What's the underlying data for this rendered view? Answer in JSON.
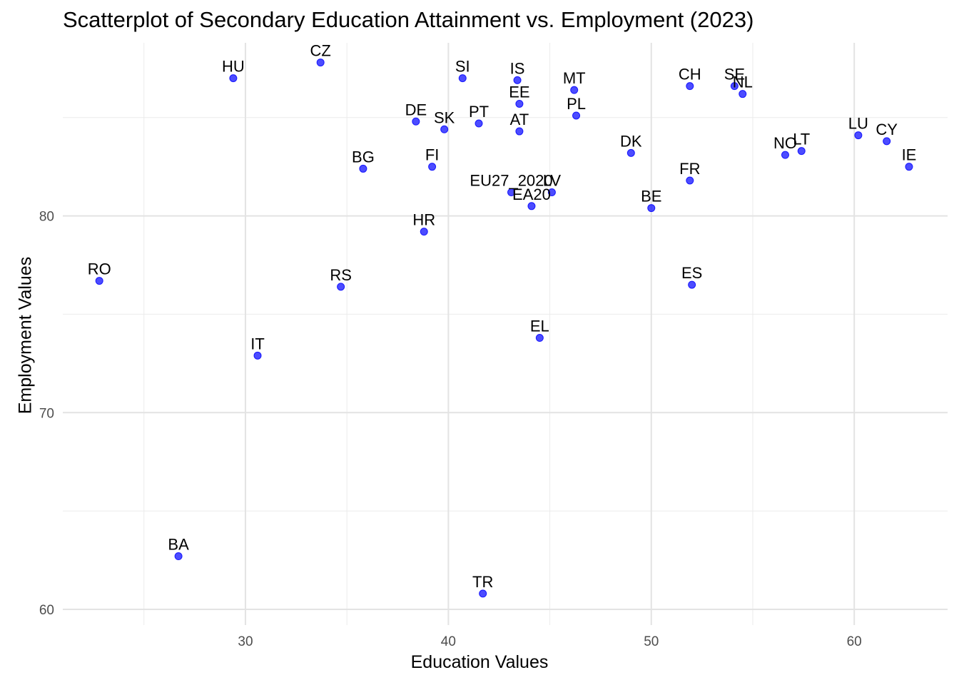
{
  "chart_data": {
    "type": "scatter",
    "title": "Scatterplot of Secondary Education Attainment vs. Employment (2023)",
    "xlabel": "Education Values",
    "ylabel": "Employment Values",
    "xlim": [
      21.0,
      64.6
    ],
    "ylim": [
      59.2,
      88.8
    ],
    "xticks": [
      30,
      40,
      50,
      60
    ],
    "yticks": [
      60,
      70,
      80
    ],
    "grid": true,
    "point_color": "#0000FF",
    "points": [
      {
        "label": "RO",
        "x": 22.8,
        "y": 76.7
      },
      {
        "label": "BA",
        "x": 26.7,
        "y": 62.7
      },
      {
        "label": "HU",
        "x": 29.4,
        "y": 87.0
      },
      {
        "label": "IT",
        "x": 30.6,
        "y": 72.9
      },
      {
        "label": "CZ",
        "x": 33.7,
        "y": 87.8
      },
      {
        "label": "RS",
        "x": 34.7,
        "y": 76.4
      },
      {
        "label": "BG",
        "x": 35.8,
        "y": 82.4
      },
      {
        "label": "DE",
        "x": 38.4,
        "y": 84.8
      },
      {
        "label": "HR",
        "x": 38.8,
        "y": 79.2
      },
      {
        "label": "FI",
        "x": 39.2,
        "y": 82.5
      },
      {
        "label": "SK",
        "x": 39.8,
        "y": 84.4
      },
      {
        "label": "SI",
        "x": 40.7,
        "y": 87.0
      },
      {
        "label": "PT",
        "x": 41.5,
        "y": 84.7
      },
      {
        "label": "TR",
        "x": 41.7,
        "y": 60.8
      },
      {
        "label": "EU27_2020",
        "x": 43.1,
        "y": 81.2
      },
      {
        "label": "IS",
        "x": 43.4,
        "y": 86.9
      },
      {
        "label": "EE",
        "x": 43.5,
        "y": 85.7
      },
      {
        "label": "AT",
        "x": 43.5,
        "y": 84.3
      },
      {
        "label": "EA20",
        "x": 44.1,
        "y": 80.5
      },
      {
        "label": "EL",
        "x": 44.5,
        "y": 73.8
      },
      {
        "label": "LV",
        "x": 45.1,
        "y": 81.2
      },
      {
        "label": "MT",
        "x": 46.2,
        "y": 86.4
      },
      {
        "label": "PL",
        "x": 46.3,
        "y": 85.1
      },
      {
        "label": "DK",
        "x": 49.0,
        "y": 83.2
      },
      {
        "label": "BE",
        "x": 50.0,
        "y": 80.4
      },
      {
        "label": "CH",
        "x": 51.9,
        "y": 86.6
      },
      {
        "label": "FR",
        "x": 51.9,
        "y": 81.8
      },
      {
        "label": "ES",
        "x": 52.0,
        "y": 76.5
      },
      {
        "label": "SE",
        "x": 54.1,
        "y": 86.6
      },
      {
        "label": "NL",
        "x": 54.5,
        "y": 86.2
      },
      {
        "label": "NO",
        "x": 56.6,
        "y": 83.1
      },
      {
        "label": "LT",
        "x": 57.4,
        "y": 83.3
      },
      {
        "label": "LU",
        "x": 60.2,
        "y": 84.1
      },
      {
        "label": "CY",
        "x": 61.6,
        "y": 83.8
      },
      {
        "label": "IE",
        "x": 62.7,
        "y": 82.5
      }
    ]
  }
}
